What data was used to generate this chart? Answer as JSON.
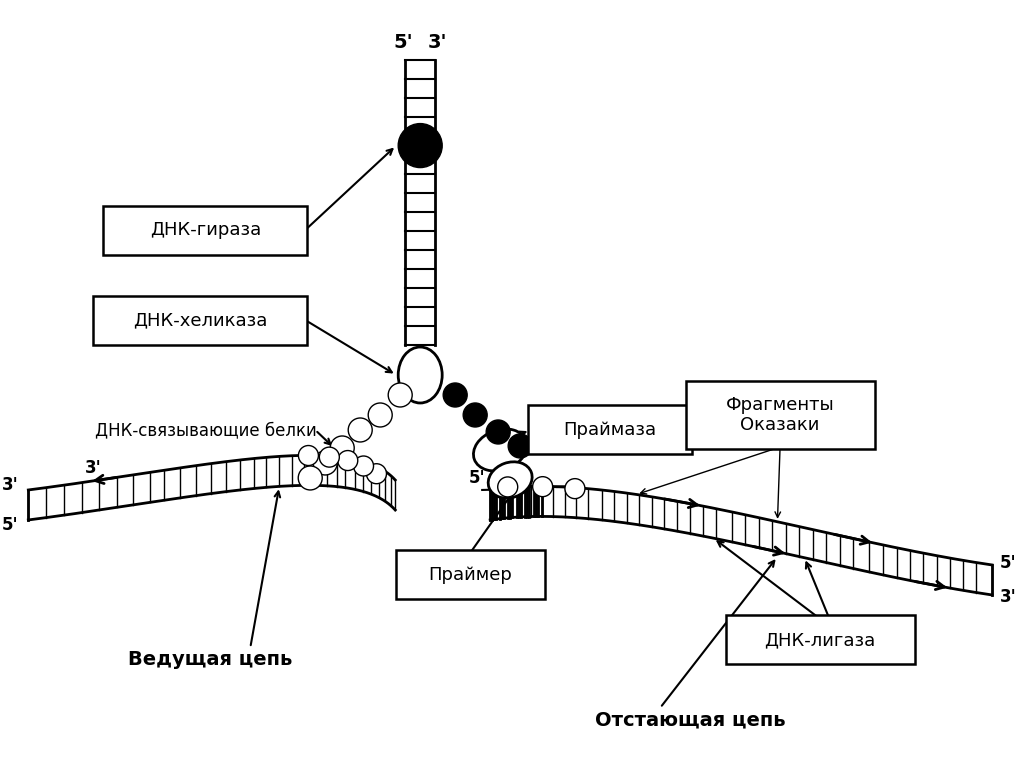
{
  "bg_color": "#ffffff",
  "line_color": "#000000",
  "labels": {
    "gyrase": "ДНК-гираза",
    "helicase": "ДНК-хеликаза",
    "ssb": "ДНК-связывающие белки",
    "primase": "Праймаза",
    "primer": "Праймер",
    "okazaki": "Фрагменты\nОказаки",
    "ligase": "ДНК-лигаза",
    "leading": "Ведущая цепь",
    "lagging": "Отстающая цепь"
  }
}
